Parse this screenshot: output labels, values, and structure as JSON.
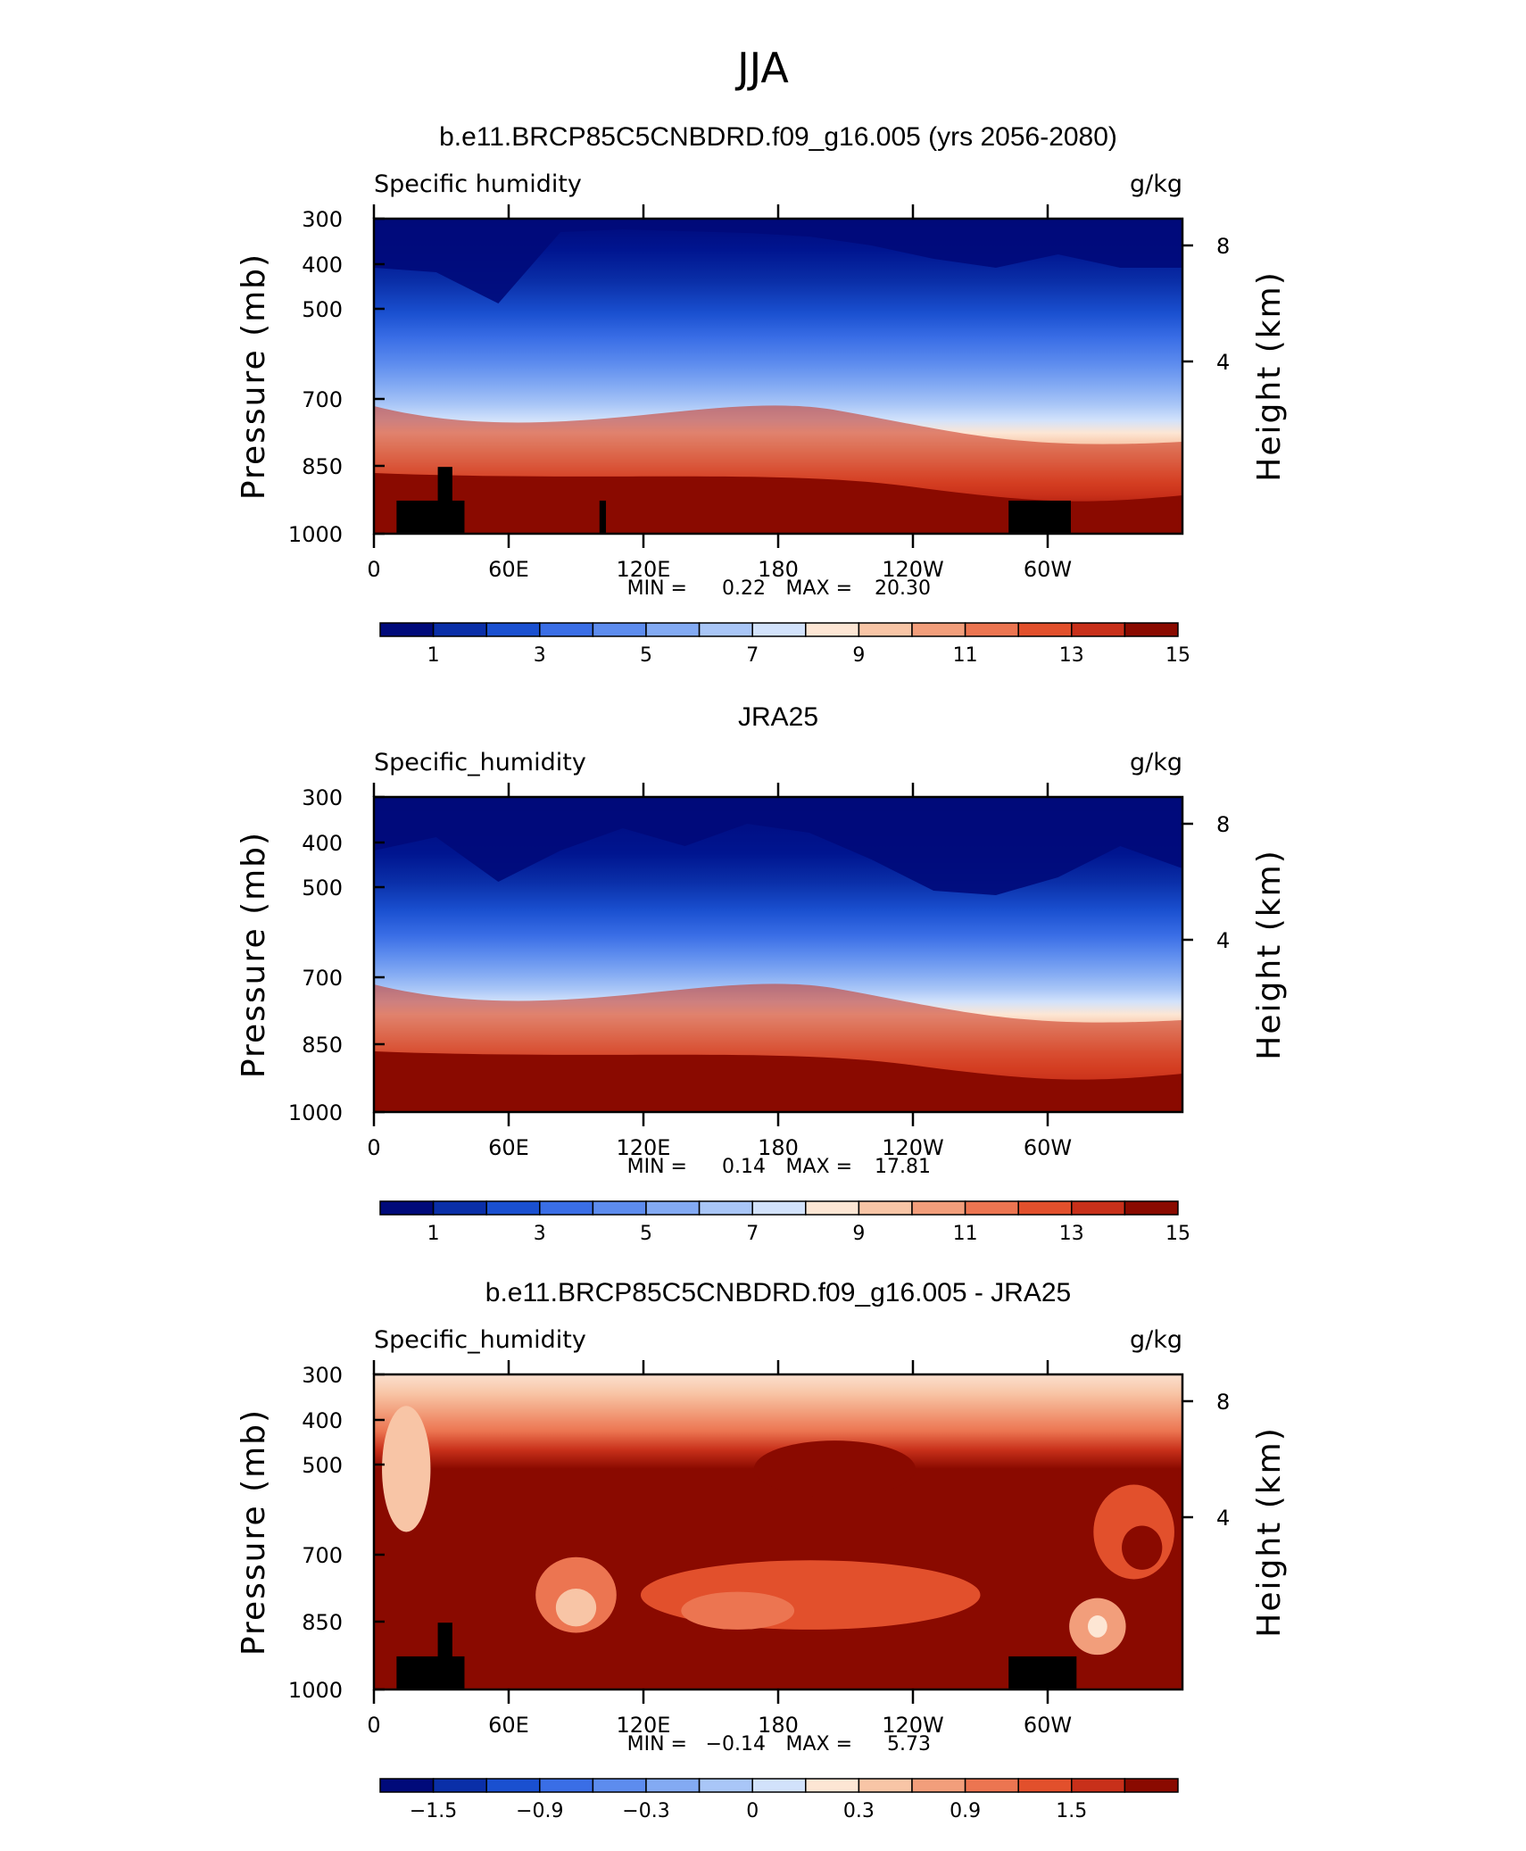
{
  "figure": {
    "title": "JJA"
  },
  "chart_data": [
    {
      "type": "heatmap",
      "title": "b.e11.BRCP85C5CNBDRD.f09_g16.005 (yrs 2056-2080)",
      "left_label": "Specific humidity",
      "right_label": "g/kg",
      "ylabel": "Pressure (mb)",
      "y2label": "Height (km)",
      "yticks": [
        "300",
        "400",
        "500",
        "700",
        "850",
        "1000"
      ],
      "y2ticks": [
        "8",
        "4"
      ],
      "xticks": [
        "0",
        "60E",
        "120E",
        "180",
        "120W",
        "60W"
      ],
      "min_label": "MIN =",
      "min": "0.22",
      "max_label": "MAX =",
      "max": "20.30",
      "colorbar_labels": [
        "1",
        "3",
        "5",
        "7",
        "9",
        "11",
        "13",
        "15"
      ],
      "colorbar_colors": [
        "#000a7a",
        "#0a2fa8",
        "#1a50d0",
        "#3a6ee6",
        "#5d8cee",
        "#83aaf3",
        "#a9c6f7",
        "#d2e2fb",
        "#fde6d4",
        "#f8c5a6",
        "#f29e7b",
        "#ec7551",
        "#e2502c",
        "#c8301a",
        "#8a0a00"
      ],
      "x_range": [
        "0",
        "360"
      ],
      "y_range": [
        1000,
        300
      ],
      "grid": false
    },
    {
      "type": "heatmap",
      "title": "JRA25",
      "left_label": "Specific_humidity",
      "right_label": "g/kg",
      "ylabel": "Pressure (mb)",
      "y2label": "Height (km)",
      "yticks": [
        "300",
        "400",
        "500",
        "700",
        "850",
        "1000"
      ],
      "y2ticks": [
        "8",
        "4"
      ],
      "xticks": [
        "0",
        "60E",
        "120E",
        "180",
        "120W",
        "60W"
      ],
      "min_label": "MIN =",
      "min": "0.14",
      "max_label": "MAX =",
      "max": "17.81",
      "colorbar_labels": [
        "1",
        "3",
        "5",
        "7",
        "9",
        "11",
        "13",
        "15"
      ],
      "colorbar_colors": [
        "#000a7a",
        "#0a2fa8",
        "#1a50d0",
        "#3a6ee6",
        "#5d8cee",
        "#83aaf3",
        "#a9c6f7",
        "#d2e2fb",
        "#fde6d4",
        "#f8c5a6",
        "#f29e7b",
        "#ec7551",
        "#e2502c",
        "#c8301a",
        "#8a0a00"
      ],
      "x_range": [
        "0",
        "360"
      ],
      "y_range": [
        1000,
        300
      ],
      "grid": false
    },
    {
      "type": "heatmap",
      "title": "b.e11.BRCP85C5CNBDRD.f09_g16.005 - JRA25",
      "left_label": "Specific_humidity",
      "right_label": "g/kg",
      "ylabel": "Pressure (mb)",
      "y2label": "Height (km)",
      "yticks": [
        "300",
        "400",
        "500",
        "700",
        "850",
        "1000"
      ],
      "y2ticks": [
        "8",
        "4"
      ],
      "xticks": [
        "0",
        "60E",
        "120E",
        "180",
        "120W",
        "60W"
      ],
      "min_label": "MIN =",
      "min": "−0.14",
      "max_label": "MAX =",
      "max": "5.73",
      "colorbar_labels": [
        "−1.5",
        "−0.9",
        "−0.3",
        "0",
        "0.3",
        "0.9",
        "1.5"
      ],
      "colorbar_colors": [
        "#000a7a",
        "#0a2fa8",
        "#1a50d0",
        "#3a6ee6",
        "#5d8cee",
        "#83aaf3",
        "#a9c6f7",
        "#d2e2fb",
        "#fde6d4",
        "#f8c5a6",
        "#f29e7b",
        "#ec7551",
        "#e2502c",
        "#c8301a",
        "#8a0a00"
      ],
      "x_range": [
        "0",
        "360"
      ],
      "y_range": [
        1000,
        300
      ],
      "grid": false
    }
  ]
}
